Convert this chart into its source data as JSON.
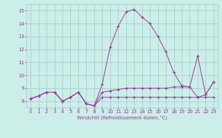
{
  "xlabel": "Windchill (Refroidissement éolien,°C)",
  "background_color": "#cceee8",
  "grid_color": "#aacccc",
  "line_color": "#993399",
  "x_values": [
    0,
    1,
    2,
    3,
    4,
    5,
    6,
    7,
    8,
    9,
    10,
    11,
    12,
    13,
    14,
    15,
    16,
    17,
    18,
    19,
    20,
    21,
    22,
    23
  ],
  "series": [
    [
      8.2,
      8.4,
      8.7,
      8.7,
      8.0,
      8.3,
      8.7,
      7.8,
      7.65,
      8.3,
      8.3,
      8.3,
      8.3,
      8.3,
      8.3,
      8.3,
      8.3,
      8.3,
      8.3,
      8.3,
      8.3,
      8.3,
      8.3,
      8.3
    ],
    [
      8.2,
      8.4,
      8.7,
      8.7,
      8.0,
      8.3,
      8.7,
      7.8,
      7.65,
      8.7,
      8.8,
      8.9,
      9.0,
      9.0,
      9.0,
      9.0,
      9.0,
      9.0,
      9.1,
      9.1,
      9.1,
      8.3,
      8.5,
      9.5
    ],
    [
      8.2,
      8.4,
      8.7,
      8.7,
      8.0,
      8.3,
      8.7,
      7.8,
      7.65,
      9.3,
      12.2,
      13.8,
      14.9,
      15.1,
      14.5,
      14.0,
      13.0,
      11.8,
      10.2,
      9.2,
      9.1,
      11.5,
      8.5,
      9.5
    ]
  ],
  "ylim": [
    7.5,
    15.5
  ],
  "yticks": [
    8,
    9,
    10,
    11,
    12,
    13,
    14,
    15
  ],
  "xlim": [
    -0.5,
    23.5
  ],
  "xticks": [
    0,
    1,
    2,
    3,
    4,
    5,
    6,
    7,
    8,
    9,
    10,
    11,
    12,
    13,
    14,
    15,
    16,
    17,
    18,
    19,
    20,
    21,
    22,
    23
  ]
}
